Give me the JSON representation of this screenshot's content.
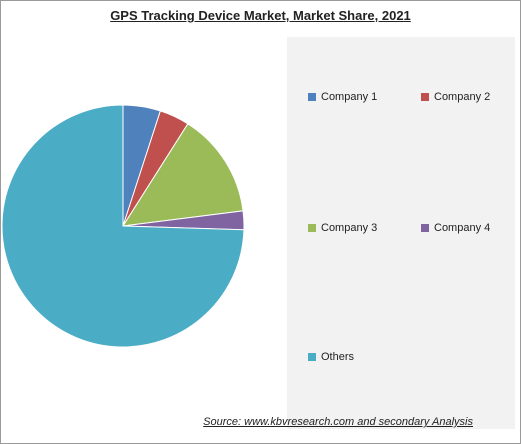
{
  "chart_data": {
    "type": "pie",
    "title": "GPS Tracking Device Market, Market Share, 2021",
    "categories": [
      "Company 1",
      "Company 2",
      "Company 3",
      "Company 4",
      "Others"
    ],
    "values": [
      5,
      4,
      14,
      2.5,
      74.5
    ],
    "colors": [
      "#4f81bd",
      "#c0504d",
      "#9bbb59",
      "#8064a2",
      "#4bacc6"
    ],
    "legend": "right"
  },
  "source": "Source:  www.kbvresearch.com  and secondary Analysis"
}
